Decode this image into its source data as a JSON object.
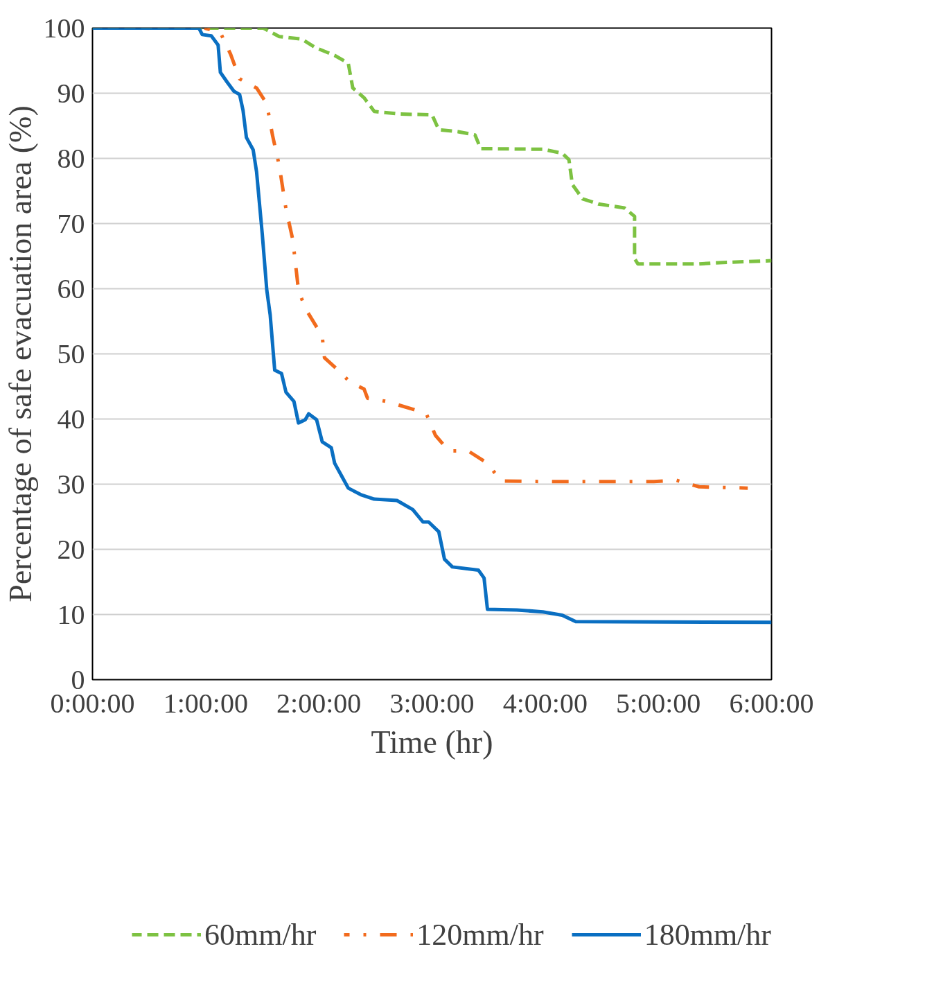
{
  "chart_data": {
    "type": "line",
    "xlabel": "Time (hr)",
    "ylabel": "Percentage of safe evacuation area (%)",
    "xlim": [
      0,
      6
    ],
    "ylim": [
      0,
      100
    ],
    "xticks": [
      {
        "value": 0,
        "label": "0:00:00"
      },
      {
        "value": 1,
        "label": "1:00:00"
      },
      {
        "value": 2,
        "label": "2:00:00"
      },
      {
        "value": 3,
        "label": "3:00:00"
      },
      {
        "value": 4,
        "label": "4:00:00"
      },
      {
        "value": 5,
        "label": "5:00:00"
      },
      {
        "value": 6,
        "label": "6:00:00"
      }
    ],
    "yticks": [
      0,
      10,
      20,
      30,
      40,
      50,
      60,
      70,
      80,
      90,
      100
    ],
    "grid": "y",
    "legend": "bottom",
    "marker": "none",
    "series": [
      {
        "name": "60mm/hr",
        "color": "#7dc242",
        "line_style": "dashed",
        "x": [
          0,
          1.51,
          1.65,
          1.85,
          1.97,
          2.14,
          2.26,
          2.3,
          2.4,
          2.49,
          2.72,
          3.0,
          3.06,
          3.23,
          3.38,
          3.43,
          3.98,
          4.15,
          4.21,
          4.24,
          4.33,
          4.47,
          4.7,
          4.79,
          4.79,
          4.82,
          5.36,
          5.54,
          6.0
        ],
        "values": [
          100,
          100,
          98.7,
          98.3,
          97,
          95.8,
          94.6,
          90.8,
          89.3,
          87.2,
          86.8,
          86.7,
          84.4,
          84.1,
          83.6,
          81.5,
          81.4,
          80.8,
          79.8,
          76,
          73.8,
          73,
          72.4,
          71.1,
          64.6,
          63.8,
          63.8,
          64,
          64.3
        ]
      },
      {
        "name": "120mm/hr",
        "color": "#f26b1d",
        "line_style": "dashdot",
        "x": [
          0.99,
          1.13,
          1.22,
          1.3,
          1.45,
          1.54,
          1.59,
          1.65,
          1.71,
          1.77,
          1.82,
          1.88,
          2.03,
          2.05,
          2.17,
          2.28,
          2.4,
          2.43,
          2.6,
          2.83,
          2.95,
          3.03,
          3.15,
          3.32,
          3.49,
          3.61,
          3.98,
          4.56,
          4.96,
          5.16,
          5.36,
          5.79
        ],
        "values": [
          100,
          99.3,
          96,
          92.2,
          90.8,
          88.4,
          83.6,
          78.9,
          72.2,
          67.5,
          59.8,
          57,
          52.7,
          49.4,
          47.5,
          45.6,
          44.6,
          43.2,
          42.7,
          41.5,
          40.8,
          37.5,
          35.1,
          35.1,
          33.2,
          30.5,
          30.4,
          30.4,
          30.4,
          30.6,
          29.6,
          29.4
        ]
      },
      {
        "name": "180mm/hr",
        "color": "#0a6fc2",
        "line_style": "solid",
        "x": [
          0,
          0.94,
          0.97,
          1.05,
          1.11,
          1.13,
          1.19,
          1.25,
          1.3,
          1.33,
          1.36,
          1.42,
          1.45,
          1.5,
          1.54,
          1.57,
          1.61,
          1.67,
          1.71,
          1.78,
          1.82,
          1.88,
          1.91,
          1.98,
          2.03,
          2.11,
          2.14,
          2.2,
          2.26,
          2.37,
          2.49,
          2.69,
          2.83,
          2.92,
          2.97,
          3.06,
          3.11,
          3.18,
          3.41,
          3.46,
          3.49,
          3.75,
          3.98,
          4.15,
          4.27,
          6.0
        ],
        "values": [
          100,
          100,
          99,
          98.8,
          97.4,
          93.2,
          91.7,
          90.3,
          89.8,
          87.4,
          83.2,
          81.3,
          77.9,
          68.4,
          59.8,
          56,
          47.5,
          47,
          44.1,
          42.7,
          39.4,
          39.9,
          40.8,
          39.9,
          36.5,
          35.6,
          33.2,
          31.3,
          29.4,
          28.4,
          27.7,
          27.5,
          26.1,
          24.2,
          24.2,
          22.7,
          18.5,
          17.3,
          16.8,
          15.6,
          10.8,
          10.7,
          10.4,
          9.9,
          8.9,
          8.8
        ]
      }
    ]
  }
}
